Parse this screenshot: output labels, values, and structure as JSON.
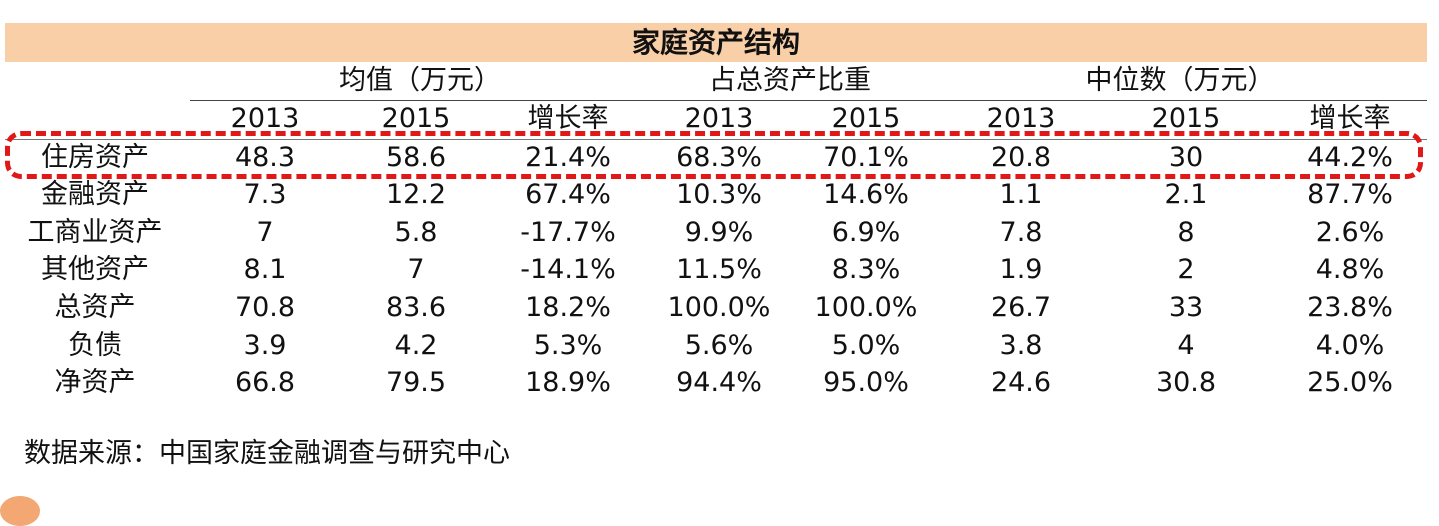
{
  "title": "家庭资产结构",
  "groups": [
    {
      "label": "均值（万元）"
    },
    {
      "label": "占总资产比重"
    },
    {
      "label": "中位数（万元）"
    }
  ],
  "columns": [
    "2013",
    "2015",
    "增长率",
    "2013",
    "2015",
    "2013",
    "2015",
    "增长率"
  ],
  "rows": [
    {
      "label": "住房资产",
      "values": [
        "48.3",
        "58.6",
        "21.4%",
        "68.3%",
        "70.1%",
        "20.8",
        "30",
        "44.2%"
      ]
    },
    {
      "label": "金融资产",
      "values": [
        "7.3",
        "12.2",
        "67.4%",
        "10.3%",
        "14.6%",
        "1.1",
        "2.1",
        "87.7%"
      ]
    },
    {
      "label": "工商业资产",
      "values": [
        "7",
        "5.8",
        "-17.7%",
        "9.9%",
        "6.9%",
        "7.8",
        "8",
        "2.6%"
      ]
    },
    {
      "label": "其他资产",
      "values": [
        "8.1",
        "7",
        "-14.1%",
        "11.5%",
        "8.3%",
        "1.9",
        "2",
        "4.8%"
      ]
    },
    {
      "label": "总资产",
      "values": [
        "70.8",
        "83.6",
        "18.2%",
        "100.0%",
        "100.0%",
        "26.7",
        "33",
        "23.8%"
      ]
    },
    {
      "label": "负债",
      "values": [
        "3.9",
        "4.2",
        "5.3%",
        "5.6%",
        "5.0%",
        "3.8",
        "4",
        "4.0%"
      ]
    },
    {
      "label": "净资产",
      "values": [
        "66.8",
        "79.5",
        "18.9%",
        "94.4%",
        "95.0%",
        "24.6",
        "30.8",
        "25.0%"
      ]
    }
  ],
  "highlighted_row": "住房资产",
  "source": "数据来源：中国家庭金融调查与研究中心",
  "colors": {
    "title_background": "#f9cfa8",
    "highlight_border": "#e01818"
  }
}
